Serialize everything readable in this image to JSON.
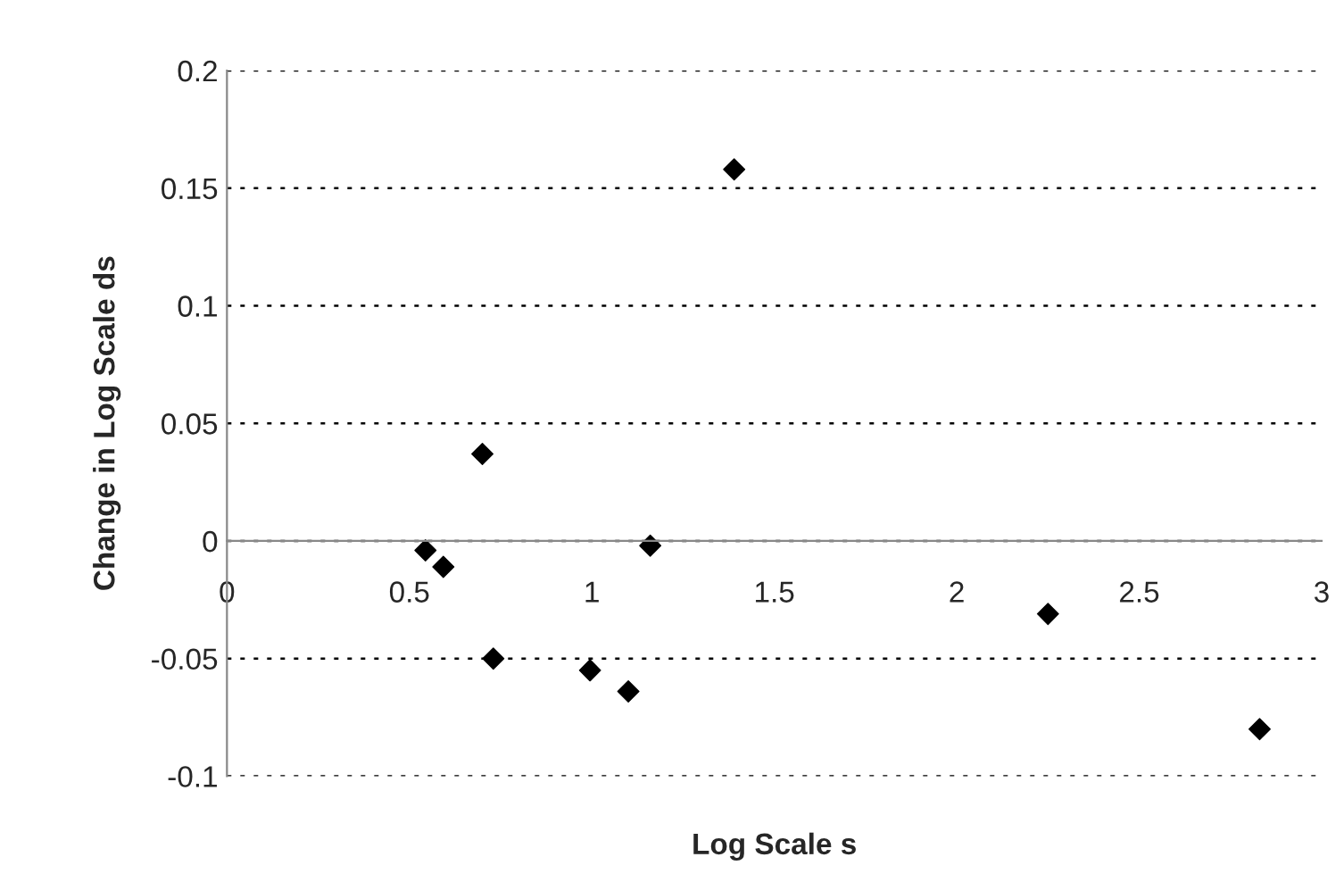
{
  "chart_data": {
    "type": "scatter",
    "xlabel": "Log Scale s",
    "ylabel": "Change in Log Scale ds",
    "x": [
      0.544,
      0.593,
      0.7,
      0.73,
      0.995,
      1.1,
      1.16,
      1.39,
      2.25,
      2.83
    ],
    "series": [
      {
        "color": "#000000",
        "values": [
          -0.004,
          -0.011,
          0.037,
          -0.05,
          -0.055,
          -0.064,
          -0.002,
          0.158,
          -0.031,
          -0.08
        ]
      }
    ],
    "xlim": [
      0,
      3
    ],
    "xticks": [
      0,
      0.5,
      1,
      1.5,
      2,
      2.5,
      3
    ],
    "ylim": [
      -0.1,
      0.2
    ],
    "yticks": [
      -0.1,
      -0.05,
      0,
      0.05,
      0.1,
      0.15,
      0.2
    ],
    "grid": "y",
    "marker": "diamond",
    "legend": false
  }
}
